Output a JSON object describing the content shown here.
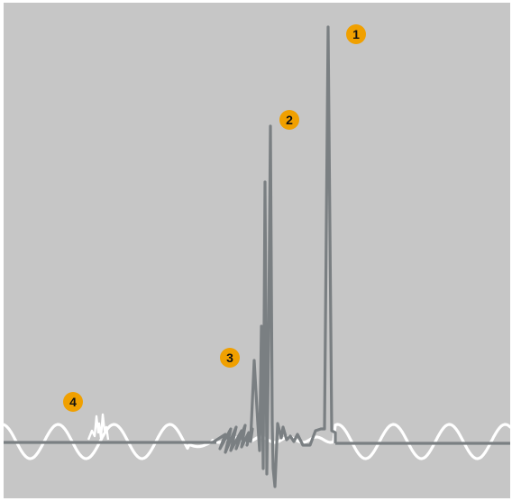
{
  "markers": [
    {
      "id": "1",
      "label": "1"
    },
    {
      "id": "2",
      "label": "2"
    },
    {
      "id": "3",
      "label": "3"
    },
    {
      "id": "4",
      "label": "4"
    }
  ],
  "colors": {
    "background": "#c6c6c6",
    "frame": "#ffffff",
    "gray_trace": "#7a7f82",
    "white_trace": "#ffffff",
    "marker_fill": "#f0a000",
    "marker_text": "#111111"
  }
}
